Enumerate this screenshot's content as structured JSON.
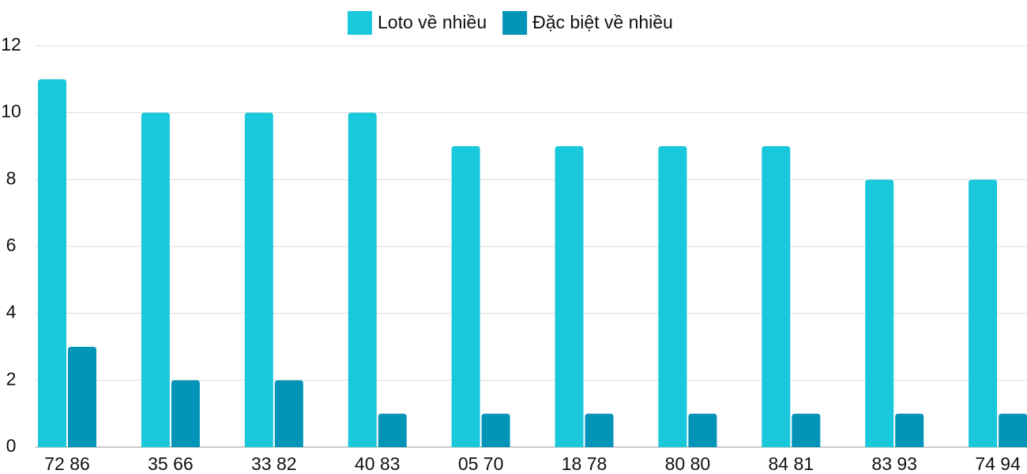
{
  "chart_data": {
    "type": "bar",
    "categories": [
      "72 86",
      "35 66",
      "33 82",
      "40 83",
      "05 70",
      "18 78",
      "80 80",
      "84 81",
      "83 93",
      "74 94"
    ],
    "series": [
      {
        "name": "Loto về nhiều",
        "color": "#1ac8db",
        "values": [
          11,
          10,
          10,
          10,
          9,
          9,
          9,
          9,
          8,
          8
        ]
      },
      {
        "name": "Đặc biệt về nhiều",
        "color": "#0494b8",
        "values": [
          3,
          2,
          2,
          1,
          1,
          1,
          1,
          1,
          1,
          1
        ]
      }
    ],
    "ylim": [
      0,
      12
    ],
    "yticks": [
      0,
      2,
      4,
      6,
      8,
      10,
      12
    ],
    "grid": true,
    "legend": "top"
  }
}
